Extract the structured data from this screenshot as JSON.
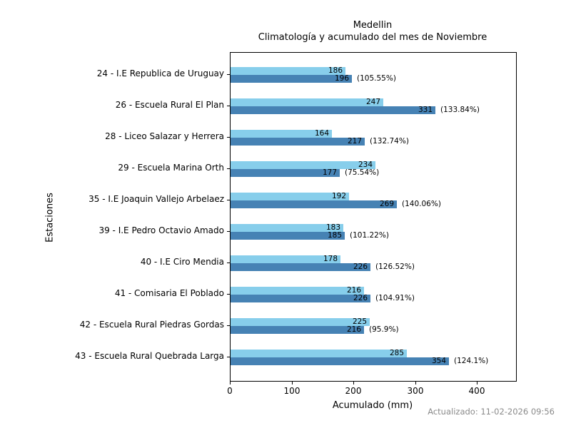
{
  "title": {
    "line1": "Medellin",
    "line2": "Climatología y acumulado del mes de Noviembre"
  },
  "x_axis": {
    "label": "Acumulado (mm)",
    "ticks": [
      0,
      100,
      200,
      300,
      400
    ],
    "max": 462
  },
  "y_axis": {
    "label": "Estaciones"
  },
  "footer": {
    "updated_text": "Actualizado: 11-02-2026 09:56"
  },
  "colors": {
    "climatologia_bar": "#87CEEB",
    "acumulado_bar": "#4682B4",
    "axis": "#000000",
    "footer_text": "#8a8a8a"
  },
  "chart_data": {
    "type": "bar",
    "orientation": "horizontal",
    "title": "Medellin\nClimatología y acumulado del mes de Noviembre",
    "xlabel": "Acumulado (mm)",
    "ylabel": "Estaciones",
    "xlim": [
      0,
      462
    ],
    "xticks": [
      0,
      100,
      200,
      300,
      400
    ],
    "grid": false,
    "legend_position": "none",
    "categories": [
      "24 - I.E Republica de Uruguay",
      "26 - Escuela Rural El Plan",
      "28 - Liceo Salazar y Herrera",
      "29 - Escuela Marina Orth",
      "35 - I.E Joaquin Vallejo Arbelaez",
      "39 - I.E Pedro Octavio Amado",
      "40 - I.E Ciro Mendia",
      "41 - Comisaria El Poblado",
      "42 - Escuela Rural Piedras Gordas",
      "43 - Escuela Rural Quebrada Larga"
    ],
    "series": [
      {
        "name": "Climatología",
        "color": "#87CEEB",
        "values": [
          186,
          247,
          164,
          234,
          192,
          183,
          178,
          216,
          225,
          285
        ]
      },
      {
        "name": "Acumulado",
        "color": "#4682B4",
        "values": [
          196,
          331,
          217,
          177,
          269,
          185,
          226,
          226,
          216,
          354
        ],
        "pct_labels": [
          "(105.55%)",
          "(133.84%)",
          "(132.74%)",
          "(75.54%)",
          "(140.06%)",
          "(101.22%)",
          "(126.52%)",
          "(104.91%)",
          "(95.9%)",
          "(124.1%)"
        ]
      }
    ]
  }
}
